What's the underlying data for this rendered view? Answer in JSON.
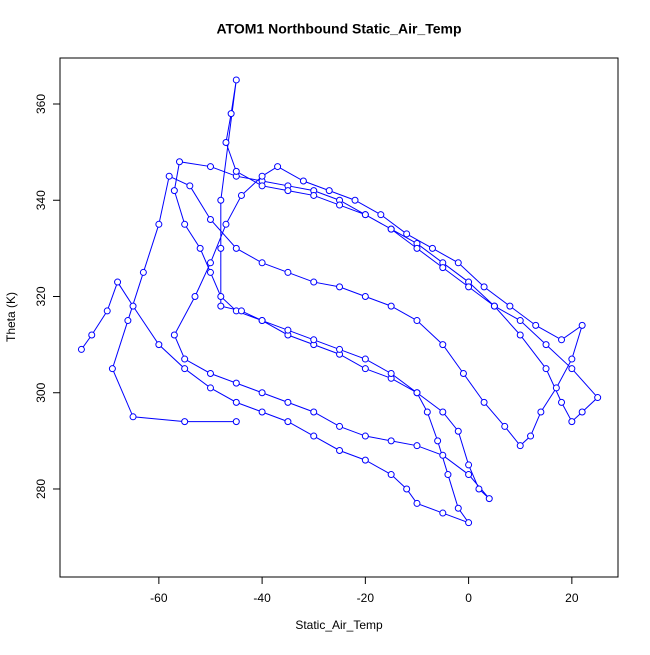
{
  "chart_data": {
    "type": "line",
    "title": "ATOM1 Northbound Static_Air_Temp",
    "x_label": "Static_Air_Temp",
    "y_label": "Theta (K)",
    "xlim": [
      -79.15,
      28.94
    ],
    "ylim": [
      261.71,
      369.56
    ],
    "xticks": [
      -60,
      -40,
      -20,
      0,
      20
    ],
    "yticks": [
      280,
      300,
      320,
      340,
      360
    ],
    "color": "#0000ff",
    "x": [
      -75,
      -73,
      -70,
      -68,
      -65,
      -60,
      -55,
      -50,
      -45,
      -40,
      -35,
      -30,
      -25,
      -20,
      -15,
      -12,
      -10,
      -5,
      0,
      -2,
      -4,
      -6,
      -8,
      -10,
      -15,
      -20,
      -25,
      -30,
      -35,
      -40,
      -45,
      -48,
      -50,
      -52,
      -55,
      -57,
      -56,
      -50,
      -45,
      -40,
      -35,
      -30,
      -25,
      -20,
      -15,
      -10,
      -5,
      0,
      5,
      10,
      15,
      18,
      20,
      22,
      25,
      20,
      15,
      10,
      5,
      0,
      -5,
      -10,
      -15,
      -20,
      -25,
      -30,
      -35,
      -40,
      -45,
      -47,
      -46,
      -45,
      -48,
      -48,
      -48,
      -44,
      -40,
      -35,
      -30,
      -25,
      -20,
      -15,
      -10,
      -5,
      -2,
      0,
      2,
      4,
      0,
      -5,
      -10,
      -15,
      -20,
      -25,
      -30,
      -35,
      -40,
      -45,
      -50,
      -55,
      -57,
      -53,
      -50,
      -47,
      -44,
      -40,
      -37,
      -32,
      -27,
      -22,
      -17,
      -12,
      -7,
      -2,
      3,
      8,
      13,
      18,
      22,
      20,
      17,
      14,
      12,
      10,
      7,
      3,
      -1,
      -5,
      -10,
      -15,
      -20,
      -25,
      -30,
      -35,
      -40,
      -45,
      -50,
      -54,
      -58,
      -60,
      -63,
      -66,
      -69,
      -65,
      -55,
      -45
    ],
    "y": [
      309,
      312,
      317,
      323,
      318,
      310,
      305,
      301,
      298,
      296,
      294,
      291,
      288,
      286,
      283,
      280,
      277,
      275,
      273,
      276,
      283,
      290,
      296,
      300,
      303,
      305,
      308,
      310,
      312,
      315,
      317,
      320,
      325,
      330,
      335,
      342,
      348,
      347,
      345,
      344,
      343,
      342,
      340,
      337,
      334,
      331,
      327,
      323,
      318,
      312,
      305,
      298,
      294,
      296,
      299,
      305,
      310,
      315,
      318,
      322,
      326,
      330,
      334,
      337,
      339,
      341,
      342,
      343,
      346,
      352,
      358,
      365,
      340,
      330,
      318,
      317,
      315,
      313,
      311,
      309,
      307,
      304,
      300,
      296,
      292,
      285,
      280,
      278,
      283,
      287,
      289,
      290,
      291,
      293,
      296,
      298,
      300,
      302,
      304,
      307,
      312,
      320,
      327,
      335,
      341,
      345,
      347,
      344,
      342,
      340,
      337,
      333,
      330,
      327,
      322,
      318,
      314,
      311,
      314,
      307,
      301,
      296,
      291,
      289,
      293,
      298,
      304,
      310,
      315,
      318,
      320,
      322,
      323,
      325,
      327,
      330,
      336,
      343,
      345,
      335,
      325,
      315,
      305,
      295,
      294,
      294
    ]
  }
}
